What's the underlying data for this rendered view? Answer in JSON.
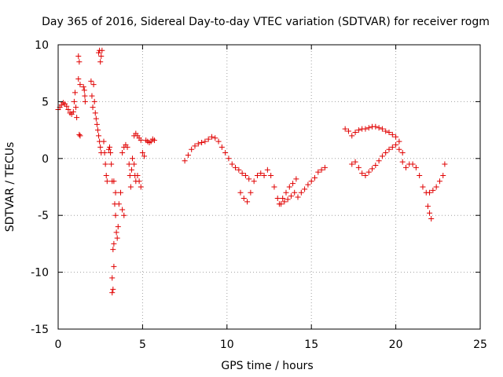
{
  "chart_data": {
    "type": "scatter",
    "title": "Day 365 of 2016, Sidereal Day-to-day VTEC variation (SDTVAR) for receiver rogm",
    "xlabel": "GPS time / hours",
    "ylabel": "SDTVAR / TECUs",
    "xlim": [
      0,
      25
    ],
    "ylim": [
      -15,
      10
    ],
    "xticks": [
      0,
      5,
      10,
      15,
      20,
      25
    ],
    "yticks": [
      -15,
      -10,
      -5,
      0,
      5,
      10
    ],
    "xtick_labels": [
      "0",
      "5",
      "10",
      "15",
      "20",
      "25"
    ],
    "ytick_labels": [
      "-15",
      "-10",
      "-5",
      "0",
      "5",
      "10"
    ],
    "grid": true,
    "marker": "+",
    "color": "#e00000",
    "series": [
      {
        "name": "SDTVAR",
        "points": [
          [
            0.0,
            4.3
          ],
          [
            0.1,
            4.5
          ],
          [
            0.2,
            4.7
          ],
          [
            0.3,
            4.9
          ],
          [
            0.4,
            4.8
          ],
          [
            0.5,
            4.6
          ],
          [
            0.6,
            4.3
          ],
          [
            0.7,
            4.0
          ],
          [
            0.8,
            3.9
          ],
          [
            0.9,
            4.1
          ],
          [
            0.95,
            5.0
          ],
          [
            1.0,
            5.8
          ],
          [
            1.05,
            4.5
          ],
          [
            1.1,
            3.6
          ],
          [
            1.2,
            9.0
          ],
          [
            1.2,
            7.0
          ],
          [
            1.25,
            8.5
          ],
          [
            1.3,
            6.5
          ],
          [
            1.25,
            2.1
          ],
          [
            1.3,
            2.0
          ],
          [
            1.55,
            6.0
          ],
          [
            1.6,
            5.0
          ],
          [
            1.5,
            6.3
          ],
          [
            1.58,
            5.5
          ],
          [
            1.95,
            6.8
          ],
          [
            2.0,
            5.5
          ],
          [
            2.05,
            4.5
          ],
          [
            2.1,
            6.5
          ],
          [
            2.15,
            5.0
          ],
          [
            2.2,
            4.0
          ],
          [
            2.25,
            3.5
          ],
          [
            2.3,
            3.0
          ],
          [
            2.35,
            2.5
          ],
          [
            2.4,
            2.0
          ],
          [
            2.45,
            1.5
          ],
          [
            2.5,
            1.0
          ],
          [
            2.55,
            0.5
          ],
          [
            2.4,
            9.3
          ],
          [
            2.45,
            9.5
          ],
          [
            2.5,
            8.5
          ],
          [
            2.55,
            9.0
          ],
          [
            2.6,
            9.5
          ],
          [
            2.7,
            1.5
          ],
          [
            2.75,
            0.5
          ],
          [
            2.8,
            -0.5
          ],
          [
            2.85,
            -1.5
          ],
          [
            2.9,
            -2.0
          ],
          [
            3.0,
            0.8
          ],
          [
            3.05,
            1.0
          ],
          [
            3.1,
            0.5
          ],
          [
            3.15,
            -0.5
          ],
          [
            3.2,
            -2.0
          ],
          [
            3.2,
            -10.5
          ],
          [
            3.25,
            -11.5
          ],
          [
            3.2,
            -11.8
          ],
          [
            3.3,
            -9.5
          ],
          [
            3.25,
            -8.0
          ],
          [
            3.3,
            -7.5
          ],
          [
            3.35,
            -4.0
          ],
          [
            3.4,
            -5.0
          ],
          [
            3.45,
            -6.5
          ],
          [
            3.5,
            -7.0
          ],
          [
            3.55,
            -6.0
          ],
          [
            3.4,
            -3.0
          ],
          [
            3.3,
            -2.0
          ],
          [
            3.6,
            -4.0
          ],
          [
            3.7,
            -3.0
          ],
          [
            3.8,
            -4.5
          ],
          [
            3.9,
            -5.0
          ],
          [
            3.8,
            0.5
          ],
          [
            3.9,
            1.0
          ],
          [
            4.0,
            1.2
          ],
          [
            4.1,
            1.0
          ],
          [
            4.2,
            -0.5
          ],
          [
            4.25,
            -1.5
          ],
          [
            4.3,
            -2.5
          ],
          [
            4.35,
            -1.0
          ],
          [
            4.4,
            0.0
          ],
          [
            4.5,
            -0.5
          ],
          [
            4.55,
            -1.5
          ],
          [
            4.6,
            -2.0
          ],
          [
            4.7,
            -1.5
          ],
          [
            4.8,
            -2.0
          ],
          [
            4.9,
            -2.5
          ],
          [
            4.5,
            2.0
          ],
          [
            4.6,
            2.2
          ],
          [
            4.7,
            2.0
          ],
          [
            4.8,
            1.8
          ],
          [
            4.9,
            1.6
          ],
          [
            5.0,
            0.5
          ],
          [
            5.1,
            0.2
          ],
          [
            5.2,
            1.6
          ],
          [
            5.3,
            1.5
          ],
          [
            5.4,
            1.4
          ],
          [
            5.5,
            1.5
          ],
          [
            5.6,
            1.7
          ],
          [
            5.7,
            1.6
          ],
          [
            7.5,
            -0.2
          ],
          [
            7.7,
            0.3
          ],
          [
            7.9,
            0.8
          ],
          [
            8.1,
            1.1
          ],
          [
            8.3,
            1.3
          ],
          [
            8.5,
            1.4
          ],
          [
            8.7,
            1.5
          ],
          [
            8.9,
            1.7
          ],
          [
            9.1,
            1.9
          ],
          [
            9.3,
            1.8
          ],
          [
            9.5,
            1.5
          ],
          [
            9.7,
            1.0
          ],
          [
            9.9,
            0.5
          ],
          [
            10.1,
            0.0
          ],
          [
            10.3,
            -0.5
          ],
          [
            10.5,
            -0.8
          ],
          [
            10.7,
            -1.0
          ],
          [
            10.9,
            -1.3
          ],
          [
            11.1,
            -1.5
          ],
          [
            11.3,
            -1.8
          ],
          [
            10.8,
            -3.0
          ],
          [
            11.0,
            -3.5
          ],
          [
            11.2,
            -3.8
          ],
          [
            11.4,
            -3.0
          ],
          [
            11.6,
            -2.0
          ],
          [
            11.8,
            -1.5
          ],
          [
            12.0,
            -1.3
          ],
          [
            12.2,
            -1.5
          ],
          [
            12.4,
            -1.0
          ],
          [
            12.6,
            -1.5
          ],
          [
            12.8,
            -2.5
          ],
          [
            13.0,
            -3.5
          ],
          [
            13.1,
            -4.0
          ],
          [
            13.3,
            -3.5
          ],
          [
            13.5,
            -3.0
          ],
          [
            13.7,
            -2.5
          ],
          [
            13.9,
            -2.2
          ],
          [
            14.1,
            -1.8
          ],
          [
            13.2,
            -4.0
          ],
          [
            13.4,
            -3.8
          ],
          [
            13.6,
            -3.6
          ],
          [
            13.8,
            -3.3
          ],
          [
            14.0,
            -3.0
          ],
          [
            14.2,
            -3.4
          ],
          [
            14.4,
            -3.0
          ],
          [
            14.6,
            -2.7
          ],
          [
            14.8,
            -2.3
          ],
          [
            15.0,
            -2.0
          ],
          [
            15.2,
            -1.7
          ],
          [
            15.4,
            -1.2
          ],
          [
            15.6,
            -1.0
          ],
          [
            15.8,
            -0.8
          ],
          [
            17.0,
            2.6
          ],
          [
            17.2,
            2.4
          ],
          [
            17.4,
            2.0
          ],
          [
            17.6,
            2.3
          ],
          [
            17.8,
            2.5
          ],
          [
            18.0,
            2.6
          ],
          [
            18.2,
            2.6
          ],
          [
            18.4,
            2.7
          ],
          [
            18.6,
            2.8
          ],
          [
            18.8,
            2.8
          ],
          [
            19.0,
            2.7
          ],
          [
            19.2,
            2.6
          ],
          [
            19.4,
            2.4
          ],
          [
            19.6,
            2.3
          ],
          [
            19.8,
            2.1
          ],
          [
            20.0,
            1.9
          ],
          [
            20.2,
            1.5
          ],
          [
            20.4,
            0.5
          ],
          [
            17.4,
            -0.5
          ],
          [
            17.6,
            -0.3
          ],
          [
            17.8,
            -0.8
          ],
          [
            18.0,
            -1.3
          ],
          [
            18.2,
            -1.5
          ],
          [
            18.4,
            -1.2
          ],
          [
            18.6,
            -0.9
          ],
          [
            18.8,
            -0.6
          ],
          [
            19.0,
            -0.2
          ],
          [
            19.2,
            0.2
          ],
          [
            19.4,
            0.5
          ],
          [
            19.6,
            0.8
          ],
          [
            19.8,
            1.0
          ],
          [
            20.0,
            1.2
          ],
          [
            20.2,
            0.8
          ],
          [
            20.4,
            -0.3
          ],
          [
            20.6,
            -0.8
          ],
          [
            20.8,
            -0.5
          ],
          [
            21.0,
            -0.5
          ],
          [
            21.2,
            -0.8
          ],
          [
            21.4,
            -1.5
          ],
          [
            21.6,
            -2.5
          ],
          [
            21.8,
            -3.0
          ],
          [
            22.0,
            -3.0
          ],
          [
            22.2,
            -2.8
          ],
          [
            22.4,
            -2.5
          ],
          [
            22.6,
            -2.0
          ],
          [
            22.8,
            -1.5
          ],
          [
            22.9,
            -0.5
          ],
          [
            21.9,
            -4.2
          ],
          [
            22.0,
            -4.8
          ],
          [
            22.1,
            -5.3
          ]
        ]
      }
    ]
  }
}
